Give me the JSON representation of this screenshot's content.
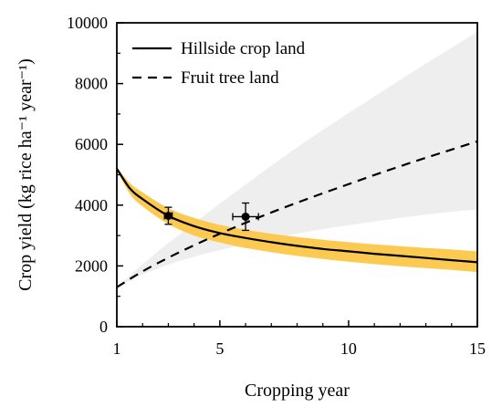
{
  "chart_data": {
    "type": "line",
    "title": "",
    "xlabel": "Cropping year",
    "ylabel": "Crop yield (kg rice ha⁻¹ year⁻¹)",
    "xlim": [
      1,
      15
    ],
    "ylim": [
      0,
      10000
    ],
    "x_ticks": [
      1,
      5,
      10,
      15
    ],
    "y_ticks": [
      0,
      2000,
      4000,
      6000,
      8000,
      10000
    ],
    "grid": false,
    "legend_position": "top-left",
    "series": [
      {
        "name": "Hillside crop land",
        "style": "solid",
        "color": "#000000",
        "x": [
          1,
          1.5,
          2,
          3,
          4,
          5,
          6,
          7,
          8,
          9,
          10,
          11,
          12,
          13,
          14,
          15
        ],
        "y": [
          5200,
          4560,
          4200,
          3650,
          3310,
          3080,
          2920,
          2780,
          2660,
          2560,
          2480,
          2400,
          2330,
          2260,
          2190,
          2120
        ],
        "band": {
          "color": "#fcc951",
          "lower": [
            5150,
            4380,
            3960,
            3380,
            3000,
            2770,
            2590,
            2450,
            2330,
            2230,
            2140,
            2060,
            1990,
            1930,
            1870,
            1800
          ],
          "upper": [
            5250,
            4740,
            4420,
            3900,
            3580,
            3350,
            3190,
            3060,
            2950,
            2860,
            2780,
            2710,
            2650,
            2590,
            2540,
            2480
          ]
        },
        "observed": {
          "x": 3,
          "y": 3650,
          "y_err": 280,
          "x_err": 0.15
        }
      },
      {
        "name": "Fruit tree land",
        "style": "dashed",
        "color": "#000000",
        "x": [
          1,
          2,
          3,
          4,
          5,
          6,
          7,
          8,
          9,
          10,
          11,
          12,
          13,
          14,
          15
        ],
        "y": [
          1300,
          1820,
          2270,
          2680,
          3060,
          3420,
          3760,
          4080,
          4390,
          4690,
          4990,
          5280,
          5560,
          5830,
          6100
        ],
        "band": {
          "color": "#eeeeee",
          "lower": [
            1300,
            1720,
            2040,
            2300,
            2520,
            2720,
            2900,
            3060,
            3210,
            3340,
            3460,
            3580,
            3690,
            3780,
            3860
          ],
          "upper": [
            1300,
            2050,
            2750,
            3400,
            4050,
            4680,
            5300,
            5900,
            6470,
            7030,
            7570,
            8120,
            8660,
            9180,
            9700
          ]
        },
        "observed": {
          "x": 6,
          "y": 3620,
          "y_err": 450,
          "x_err": 0.5
        }
      }
    ]
  }
}
